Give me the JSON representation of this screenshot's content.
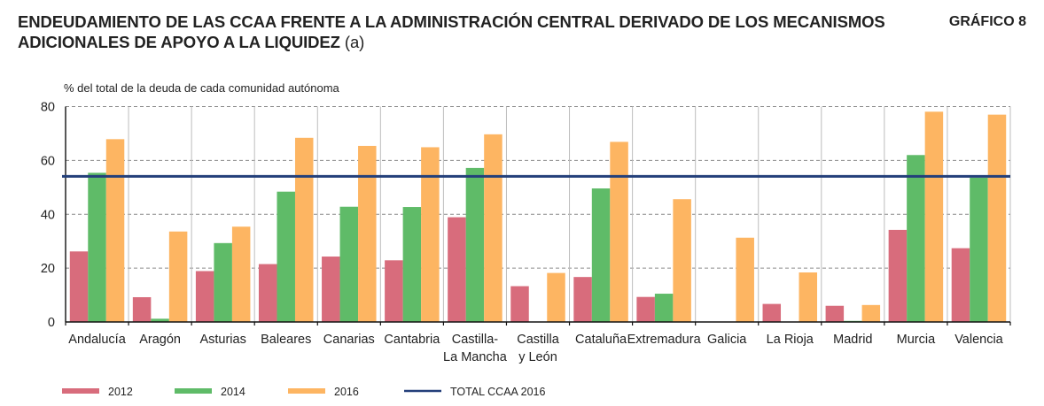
{
  "header": {
    "title_line1": "ENDEUDAMIENTO DE LAS CCAA FRENTE A LA ADMINISTRACIÓN CENTRAL DERIVADO DE LOS MECANISMOS",
    "title_line2": "ADICIONALES DE APOYO A LA LIQUIDEZ",
    "title_suffix": "(a)",
    "chart_number": "GRÁFICO 8"
  },
  "colors": {
    "2012": "#d86c7c",
    "2014": "#5fbb68",
    "2016": "#fdb562",
    "total": "#233f7a"
  },
  "chart_data": {
    "type": "bar",
    "title": "ENDEUDAMIENTO DE LAS CCAA FRENTE A LA ADMINISTRACIÓN CENTRAL DERIVADO DE LOS MECANISMOS ADICIONALES DE APOYO A LA LIQUIDEZ (a)",
    "ylabel": "% del total de la deuda de cada comunidad autónoma",
    "xlabel": "",
    "ylim": [
      0,
      80
    ],
    "yticks": [
      0,
      20,
      40,
      60,
      80
    ],
    "grid": true,
    "legend_position": "bottom",
    "categories": [
      [
        "Andalucía"
      ],
      [
        "Aragón"
      ],
      [
        "Asturias"
      ],
      [
        "Baleares"
      ],
      [
        "Canarias"
      ],
      [
        "Cantabria"
      ],
      [
        "Castilla-",
        "La Mancha"
      ],
      [
        "Castilla",
        "y León"
      ],
      [
        "Cataluña"
      ],
      [
        "Extremadura"
      ],
      [
        "Galicia"
      ],
      [
        "La Rioja"
      ],
      [
        "Madrid"
      ],
      [
        "Murcia"
      ],
      [
        "Valencia"
      ]
    ],
    "series": [
      {
        "name": "2012",
        "key": "2012",
        "values": [
          26.2,
          9.2,
          18.9,
          21.5,
          24.3,
          22.9,
          38.9,
          13.3,
          16.7,
          9.3,
          0,
          6.7,
          6.0,
          34.2,
          27.4
        ]
      },
      {
        "name": "2014",
        "key": "2014",
        "values": [
          55.4,
          1.2,
          29.3,
          48.4,
          42.8,
          42.7,
          57.2,
          0,
          49.6,
          10.5,
          0,
          0,
          0.4,
          62.0,
          53.6
        ]
      },
      {
        "name": "2016",
        "key": "2016",
        "values": [
          67.9,
          33.6,
          35.4,
          68.4,
          65.4,
          64.9,
          69.7,
          18.2,
          66.9,
          45.6,
          31.3,
          18.4,
          6.3,
          78.1,
          77.0
        ]
      }
    ],
    "reference_line": {
      "name": "TOTAL CCAA 2016",
      "value": 54.1
    },
    "legend": [
      "2012",
      "2014",
      "2016",
      "TOTAL CCAA 2016"
    ]
  }
}
